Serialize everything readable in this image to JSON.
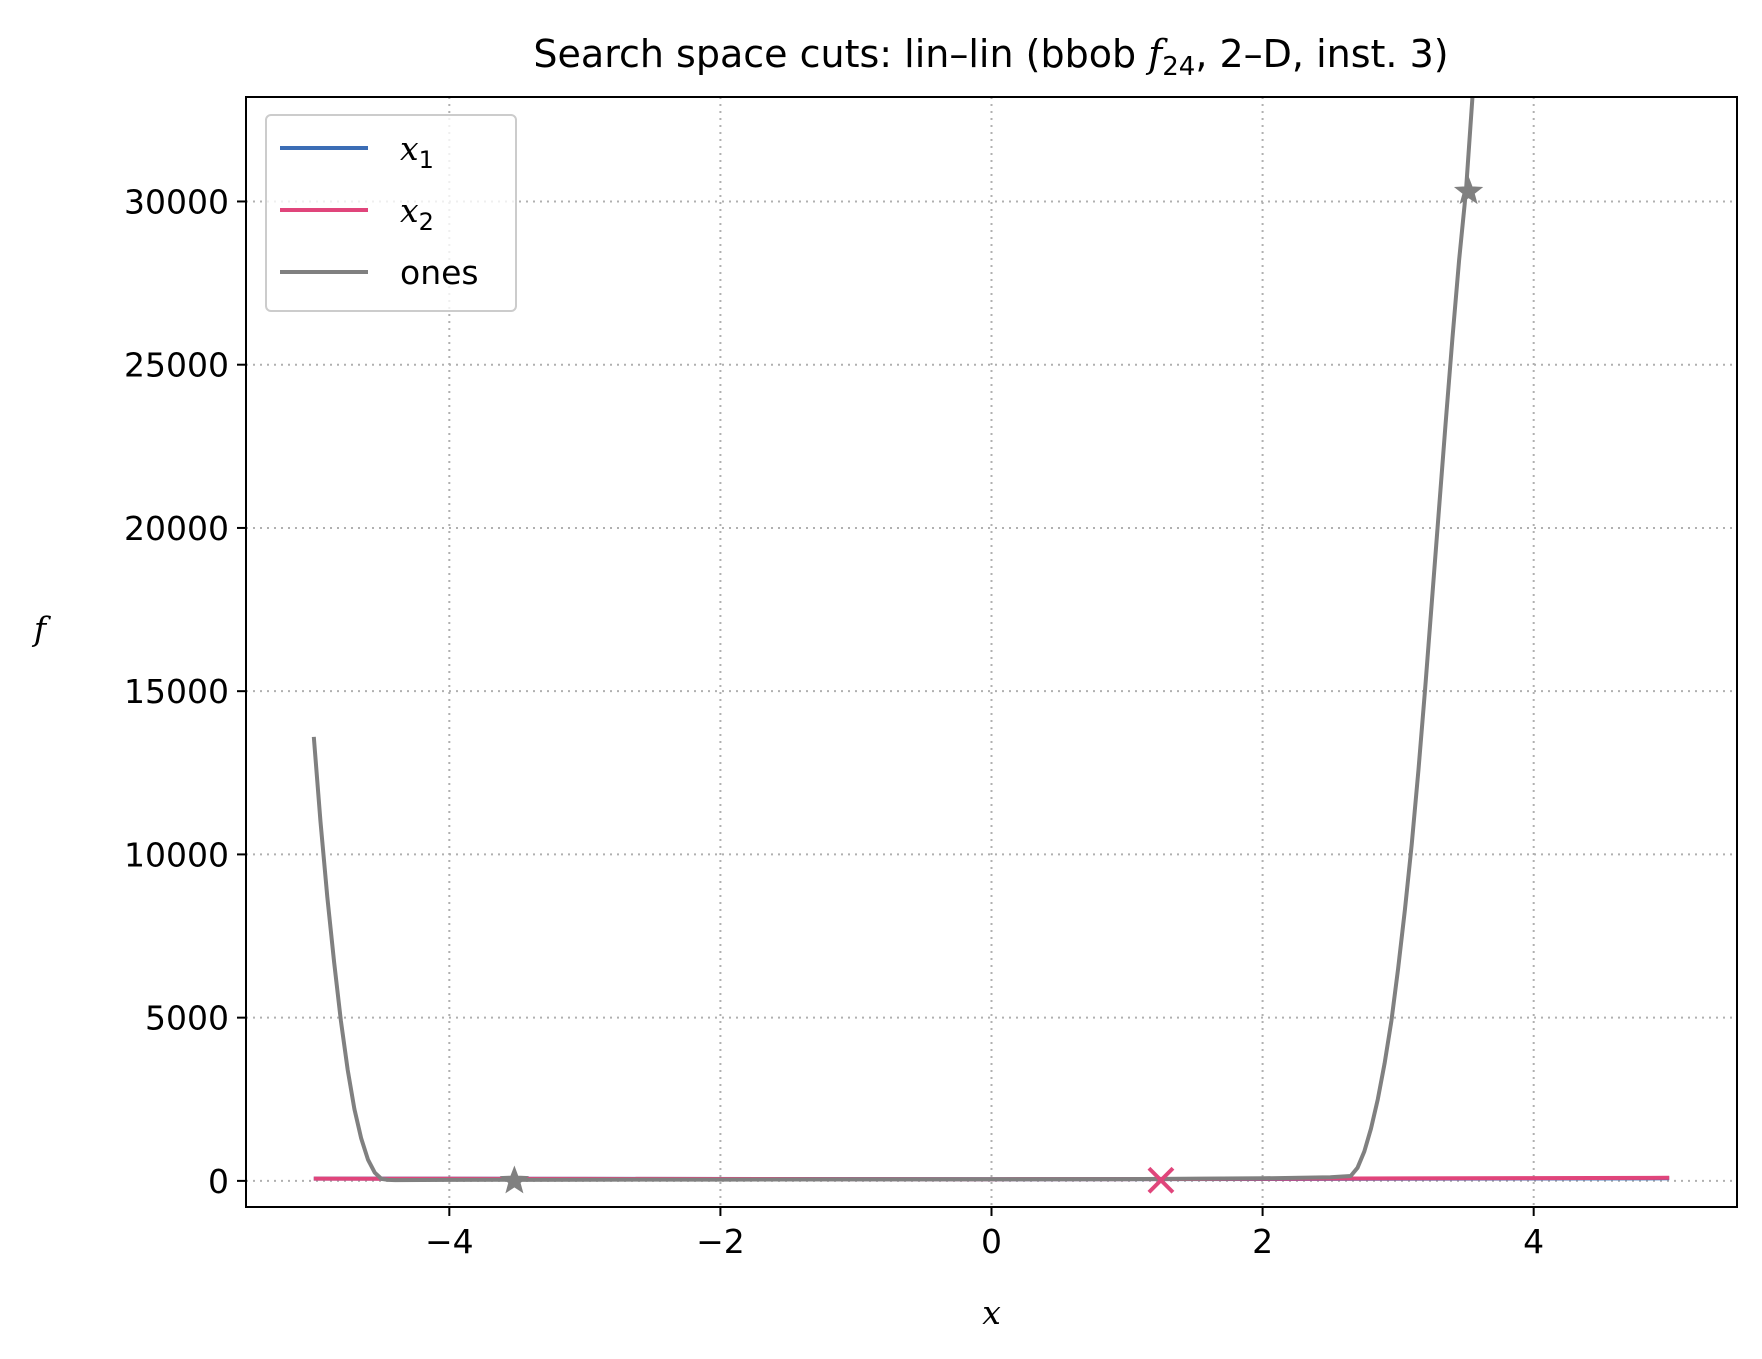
{
  "chart_data": {
    "type": "line",
    "title": "Search space cuts: lin–lin (bbob f24, 2–D, inst. 3)",
    "title_parts": {
      "prefix": "Search space cuts: lin–lin (bbob ",
      "func": "f",
      "func_sub": "24",
      "suffix": ", 2–D, inst. 3)"
    },
    "xlabel": "x",
    "ylabel": "f",
    "xlim": [
      -5.5,
      5.5
    ],
    "ylim": [
      -800,
      33200
    ],
    "xticks": [
      -4,
      -2,
      0,
      2,
      4
    ],
    "xtick_labels": [
      "−4",
      "−2",
      "0",
      "2",
      "4"
    ],
    "yticks": [
      0,
      5000,
      10000,
      15000,
      20000,
      25000,
      30000
    ],
    "ytick_labels": [
      "0",
      "5000",
      "10000",
      "15000",
      "20000",
      "25000",
      "30000"
    ],
    "grid": true,
    "legend_position": "top-left",
    "series": [
      {
        "name": "x",
        "name_sub": "1",
        "color": "#3b6db5",
        "x": [
          -5,
          -2.5,
          0,
          2.5,
          5
        ],
        "y": [
          70,
          60,
          50,
          60,
          80
        ]
      },
      {
        "name": "x",
        "name_sub": "2",
        "color": "#e0457b",
        "x": [
          -5,
          -4,
          -3,
          -2,
          -1,
          0,
          1,
          2,
          3,
          4,
          5
        ],
        "y": [
          70,
          65,
          62,
          58,
          55,
          52,
          55,
          65,
          75,
          85,
          95
        ],
        "marker": {
          "symbol": "x",
          "x": 1.25,
          "y": 20
        }
      },
      {
        "name": "ones",
        "color": "#808080",
        "x": [
          -5.0,
          -4.95,
          -4.9,
          -4.85,
          -4.8,
          -4.75,
          -4.7,
          -4.65,
          -4.6,
          -4.55,
          -4.5,
          -4.45,
          -4.4,
          -4.0,
          -3.0,
          -2.0,
          -1.0,
          0.0,
          1.0,
          2.0,
          2.5,
          2.65,
          2.7,
          2.75,
          2.8,
          2.85,
          2.9,
          2.95,
          3.0,
          3.05,
          3.1,
          3.15,
          3.2,
          3.25,
          3.3,
          3.35,
          3.4,
          3.45,
          3.5,
          3.55
        ],
        "y": [
          13600,
          11000,
          8700,
          6700,
          4900,
          3400,
          2200,
          1300,
          650,
          250,
          60,
          30,
          25,
          30,
          35,
          40,
          45,
          50,
          55,
          80,
          110,
          150,
          400,
          900,
          1600,
          2500,
          3600,
          4900,
          6500,
          8300,
          10300,
          12600,
          15100,
          17800,
          20500,
          23200,
          25800,
          28200,
          30300,
          33300
        ],
        "markers": [
          {
            "symbol": "star",
            "x": -3.52,
            "y": 0
          },
          {
            "symbol": "star",
            "x": 3.52,
            "y": 30300
          }
        ]
      }
    ]
  }
}
